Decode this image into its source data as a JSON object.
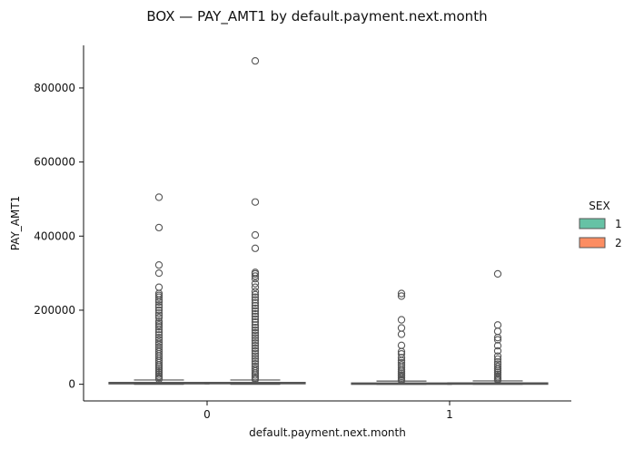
{
  "chart_data": {
    "type": "box",
    "title": "BOX — PAY_AMT1 by default.payment.next.month",
    "xlabel": "default.payment.next.month",
    "ylabel": "PAY_AMT1",
    "categories": [
      "0",
      "1"
    ],
    "ylim": [
      -45000,
      915000
    ],
    "yticks": [
      0,
      200000,
      400000,
      600000,
      800000
    ],
    "ytick_labels": [
      "0",
      "200000",
      "400000",
      "600000",
      "800000"
    ],
    "grid": false,
    "legend": {
      "title": "SEX",
      "placement": "right"
    },
    "series": [
      {
        "name": "1",
        "color": "#66c2a5",
        "boxes": [
          {
            "category": "0",
            "q1": 1000,
            "median": 2200,
            "q3": 5000,
            "whisker_low": 0,
            "whisker_high": 11500,
            "outliers": [
              505000,
              423000,
              322000,
              300000,
              262000,
              245000,
              240000,
              235000,
              228000,
              222000,
              214000,
              208000,
              200000,
              192000,
              186000,
              180000,
              170000,
              165000,
              160000,
              155000,
              148000,
              140000,
              133000,
              126000,
              120000,
              113000,
              107000,
              100000,
              94000,
              88000,
              82000,
              76000,
              70000,
              64000,
              58000,
              52000,
              47000,
              42000,
              37000,
              32000,
              27000,
              22000,
              17500,
              14000
            ]
          },
          {
            "category": "1",
            "q1": 0,
            "median": 1500,
            "q3": 3500,
            "whisker_low": 0,
            "whisker_high": 8500,
            "outliers": [
              245000,
              238000,
              174000,
              152000,
              135000,
              105000,
              88000,
              82000,
              72000,
              64000,
              58000,
              52000,
              46000,
              40000,
              35000,
              30000,
              25000,
              21000,
              17000,
              13000,
              10000
            ]
          }
        ]
      },
      {
        "name": "2",
        "color": "#fc8d62",
        "boxes": [
          {
            "category": "0",
            "q1": 1200,
            "median": 2500,
            "q3": 5000,
            "whisker_low": 0,
            "whisker_high": 11500,
            "outliers": [
              873000,
              492000,
              403000,
              367000,
              302000,
              298000,
              292000,
              285000,
              272000,
              262000,
              250000,
              242000,
              235000,
              228000,
              220000,
              212000,
              205000,
              198000,
              190000,
              183000,
              176000,
              168000,
              160000,
              153000,
              146000,
              139000,
              132000,
              125000,
              118000,
              111000,
              104000,
              97000,
              90000,
              83000,
              76000,
              69000,
              62000,
              55000,
              48000,
              42000,
              36000,
              30000,
              25000,
              20000,
              16000,
              13000
            ]
          },
          {
            "category": "1",
            "q1": 0,
            "median": 1500,
            "q3": 3800,
            "whisker_low": 0,
            "whisker_high": 9000,
            "outliers": [
              298000,
              160000,
              143000,
              126000,
              120000,
              104000,
              90000,
              76000,
              68000,
              60000,
              54000,
              48000,
              42000,
              37000,
              32000,
              27000,
              22000,
              18000,
              14000,
              11000
            ]
          }
        ]
      }
    ]
  }
}
